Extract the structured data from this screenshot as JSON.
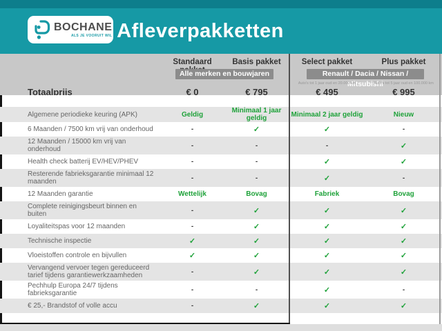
{
  "header": {
    "logo_name": "BOCHANE",
    "logo_tagline": "ALS JE VOORUIT WIL",
    "title": "Afleverpakketten"
  },
  "colors": {
    "teal": "#1699a5",
    "teal_dark": "#0d7e8c",
    "band_gray": "#c8c8c8",
    "badge_gray": "#8c8c8c",
    "row_gray": "#e4e4e4",
    "green": "#1fa23a"
  },
  "table": {
    "total_label": "Totaalprijs",
    "packages": [
      {
        "name": "Standaard pakket",
        "price": "€ 0"
      },
      {
        "name": "Basis pakket",
        "price": "€ 795"
      },
      {
        "name": "Select pakket",
        "price": "€ 495",
        "note": "Auto's tot 1 jaar oud en 20.000 km"
      },
      {
        "name": "Plus pakket",
        "price": "€ 995",
        "note": "Auto's tot 5 jaar oud en 100.000 km"
      }
    ],
    "group_badges": [
      {
        "label": "Alle merken en bouwjaren"
      },
      {
        "label": "Renault / Dacia / Nissan / Mitsubishi"
      }
    ],
    "rows": [
      {
        "label": "Algemene periodieke keuring (APK)",
        "values": [
          "Geldig",
          "Minimaal 1 jaar geldig",
          "Minimaal 2 jaar geldig",
          "Nieuw"
        ]
      },
      {
        "label": "6 Maanden / 7500 km vrij van onderhoud",
        "values": [
          "-",
          "✓",
          "✓",
          "-"
        ]
      },
      {
        "label": "12 Maanden / 15000 km vrij van onderhoud",
        "values": [
          "-",
          "-",
          "-",
          "✓"
        ]
      },
      {
        "label": "Health check batterij EV/HEV/PHEV",
        "values": [
          "-",
          "-",
          "✓",
          "✓"
        ]
      },
      {
        "label": "Resterende fabrieksgarantie minimaal 12 maanden",
        "values": [
          "-",
          "-",
          "✓",
          "-"
        ]
      },
      {
        "label": "12 Maanden garantie",
        "values": [
          "Wettelijk",
          "Bovag",
          "Fabriek",
          "Bovag"
        ]
      },
      {
        "label": "Complete reinigingsbeurt binnen en buiten",
        "values": [
          "-",
          "✓",
          "✓",
          "✓"
        ]
      },
      {
        "label": "Loyaliteitspas voor 12 maanden",
        "values": [
          "-",
          "✓",
          "✓",
          "✓"
        ]
      },
      {
        "label": "Technische inspectie",
        "values": [
          "✓",
          "✓",
          "✓",
          "✓"
        ]
      },
      {
        "label": "Vloeistoffen controle en bijvullen",
        "values": [
          "✓",
          "✓",
          "✓",
          "✓"
        ]
      },
      {
        "label": "Vervangend vervoer tegen gereduceerd tarief tijdens garantiewerkzaamheden",
        "values": [
          "-",
          "✓",
          "✓",
          "✓"
        ]
      },
      {
        "label": "Pechhulp Europa 24/7 tijdens fabrieksgarantie",
        "values": [
          "-",
          "-",
          "✓",
          "-"
        ]
      },
      {
        "label": "€ 25,- Brandstof of volle accu",
        "values": [
          "-",
          "✓",
          "✓",
          "✓"
        ]
      }
    ]
  }
}
